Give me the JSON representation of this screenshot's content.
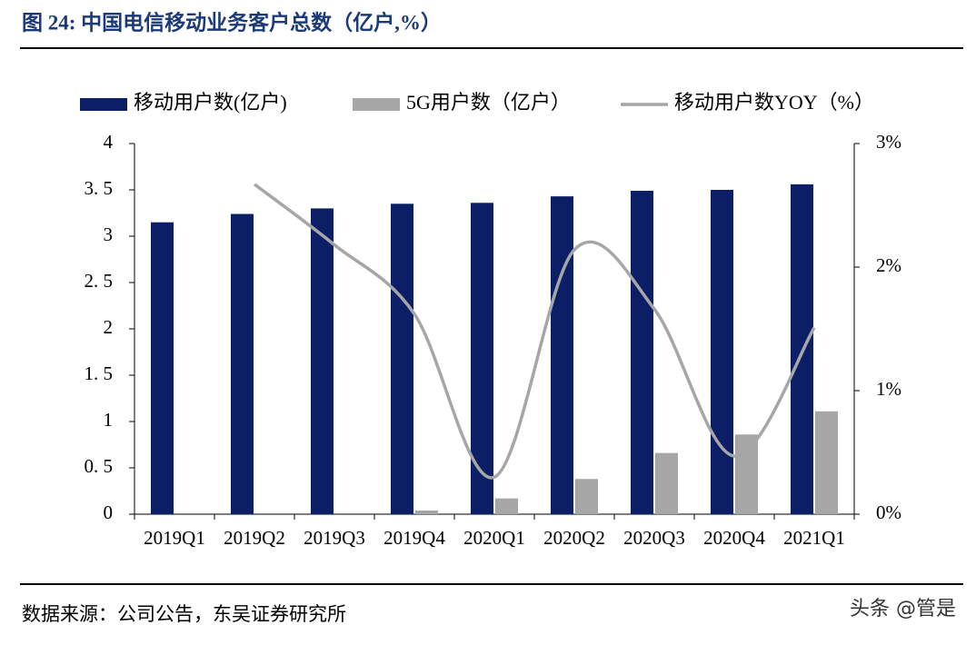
{
  "chart_data": {
    "type": "bar",
    "title": "图 24:  中国电信移动业务客户总数（亿户,%）",
    "categories": [
      "2019Q1",
      "2019Q2",
      "2019Q3",
      "2019Q4",
      "2020Q1",
      "2020Q2",
      "2020Q3",
      "2020Q4",
      "2021Q1"
    ],
    "series": [
      {
        "name": "移动用户数(亿户)",
        "color": "#0c1f66",
        "values": [
          3.15,
          3.24,
          3.3,
          3.35,
          3.36,
          3.43,
          3.49,
          3.5,
          3.56
        ]
      },
      {
        "name": "5G用户数（亿户）",
        "color": "#a6a6a6",
        "values": [
          null,
          null,
          null,
          0.04,
          0.17,
          0.38,
          0.66,
          0.86,
          1.11
        ]
      },
      {
        "name": "移动用户数YOY（%）",
        "type": "line",
        "axis": "y2",
        "color": "#a6a6a6",
        "values": [
          null,
          2.67,
          2.18,
          1.62,
          0.3,
          2.14,
          1.66,
          0.47,
          1.51
        ]
      }
    ],
    "ylim": [
      0,
      4
    ],
    "yticks": [
      0,
      {
        "value": 0.5,
        "label": "0. 5"
      },
      1,
      {
        "value": 1.5,
        "label": "1. 5"
      },
      2,
      {
        "value": 2.5,
        "label": "2. 5"
      },
      3,
      {
        "value": 3.5,
        "label": "3. 5"
      },
      4
    ],
    "y2lim": [
      0,
      3
    ],
    "y2ticks": [
      {
        "value": 0,
        "label": "0%"
      },
      {
        "value": 1,
        "label": "1%"
      },
      {
        "value": 2,
        "label": "2%"
      },
      {
        "value": 3,
        "label": "3%"
      }
    ],
    "grid": false,
    "source": "数据来源：公司公告，东吴证券研究所",
    "watermark": "头条 @管是"
  }
}
